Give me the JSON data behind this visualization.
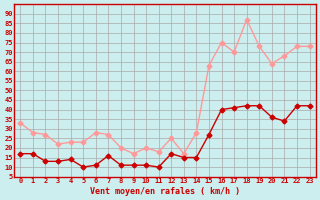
{
  "x": [
    0,
    1,
    2,
    3,
    4,
    5,
    6,
    7,
    8,
    9,
    10,
    11,
    12,
    13,
    14,
    15,
    16,
    17,
    18,
    19,
    20,
    21,
    22,
    23
  ],
  "vent_moyen": [
    17,
    17,
    13,
    13,
    14,
    10,
    11,
    16,
    11,
    11,
    11,
    10,
    17,
    15,
    15,
    27,
    40,
    41,
    42,
    42,
    36,
    34,
    42,
    42
  ],
  "en_rafales": [
    33,
    28,
    27,
    22,
    23,
    23,
    28,
    27,
    20,
    17,
    20,
    18,
    25,
    17,
    28,
    63,
    75,
    70,
    87,
    73,
    64,
    68,
    73,
    73
  ],
  "color_moyen": "#cc0000",
  "color_rafales": "#ff9999",
  "bg_color": "#cceeee",
  "grid_color": "#aaaaaa",
  "xlabel": "Vent moyen/en rafales ( km/h )",
  "xlabel_color": "#cc0000",
  "yticks": [
    5,
    10,
    15,
    20,
    25,
    30,
    35,
    40,
    45,
    50,
    55,
    60,
    65,
    70,
    75,
    80,
    85,
    90
  ],
  "ylim": [
    5,
    95
  ],
  "xlim": [
    -0.5,
    23.5
  ]
}
